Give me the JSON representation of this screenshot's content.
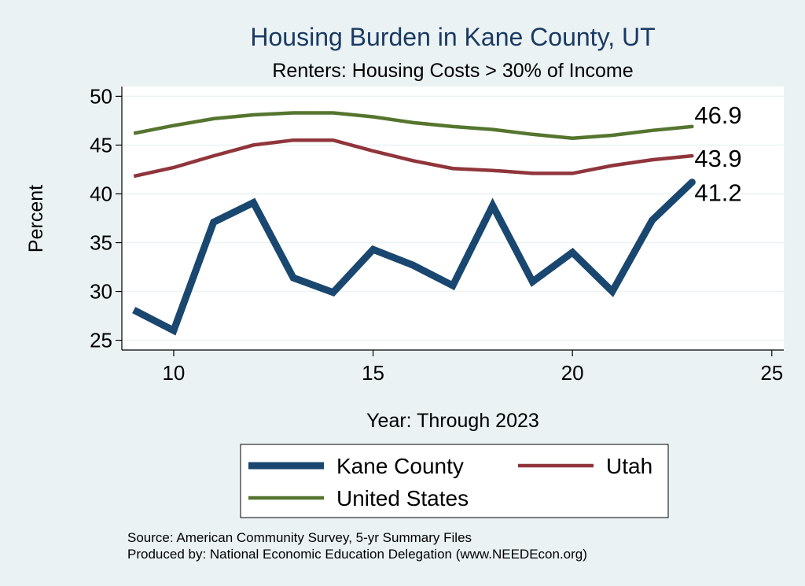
{
  "chart_data": {
    "type": "line",
    "title": "Housing Burden in Kane County, UT",
    "subtitle": "Renters: Housing Costs > 30% of Income",
    "xlabel": "Year: Through 2023",
    "ylabel": "Percent",
    "xlim": [
      8.7,
      25.3
    ],
    "ylim": [
      24,
      51
    ],
    "xticks": [
      10,
      15,
      20,
      25
    ],
    "yticks": [
      25,
      30,
      35,
      40,
      45,
      50
    ],
    "grid": true,
    "legend_position": "bottom",
    "series": [
      {
        "name": "Kane County",
        "color": "#1a476f",
        "x": [
          9,
          10,
          11,
          12,
          13,
          14,
          15,
          16,
          17,
          18,
          19,
          20,
          21,
          22,
          23
        ],
        "values": [
          28.1,
          26.0,
          37.1,
          39.1,
          31.4,
          29.9,
          34.3,
          32.7,
          30.6,
          38.8,
          31.0,
          34.0,
          30.0,
          37.3,
          41.2
        ],
        "end_label": "41.2"
      },
      {
        "name": "Utah",
        "color": "#90353b",
        "x": [
          9,
          10,
          11,
          12,
          13,
          14,
          15,
          16,
          17,
          18,
          19,
          20,
          21,
          22,
          23
        ],
        "values": [
          41.8,
          42.7,
          43.9,
          45.0,
          45.5,
          45.5,
          44.4,
          43.4,
          42.6,
          42.4,
          42.1,
          42.1,
          42.9,
          43.5,
          43.9
        ],
        "end_label": "43.9"
      },
      {
        "name": "United States",
        "color": "#55752f",
        "x": [
          9,
          10,
          11,
          12,
          13,
          14,
          15,
          16,
          17,
          18,
          19,
          20,
          21,
          22,
          23
        ],
        "values": [
          46.2,
          47.0,
          47.7,
          48.1,
          48.3,
          48.3,
          47.9,
          47.3,
          46.9,
          46.6,
          46.1,
          45.7,
          46.0,
          46.5,
          46.9
        ],
        "end_label": "46.9"
      }
    ]
  },
  "notes": {
    "source": "Source: American Community Survey, 5-yr Summary Files",
    "produced": "Produced by: National Economic Education Delegation (www.NEEDEcon.org)"
  }
}
